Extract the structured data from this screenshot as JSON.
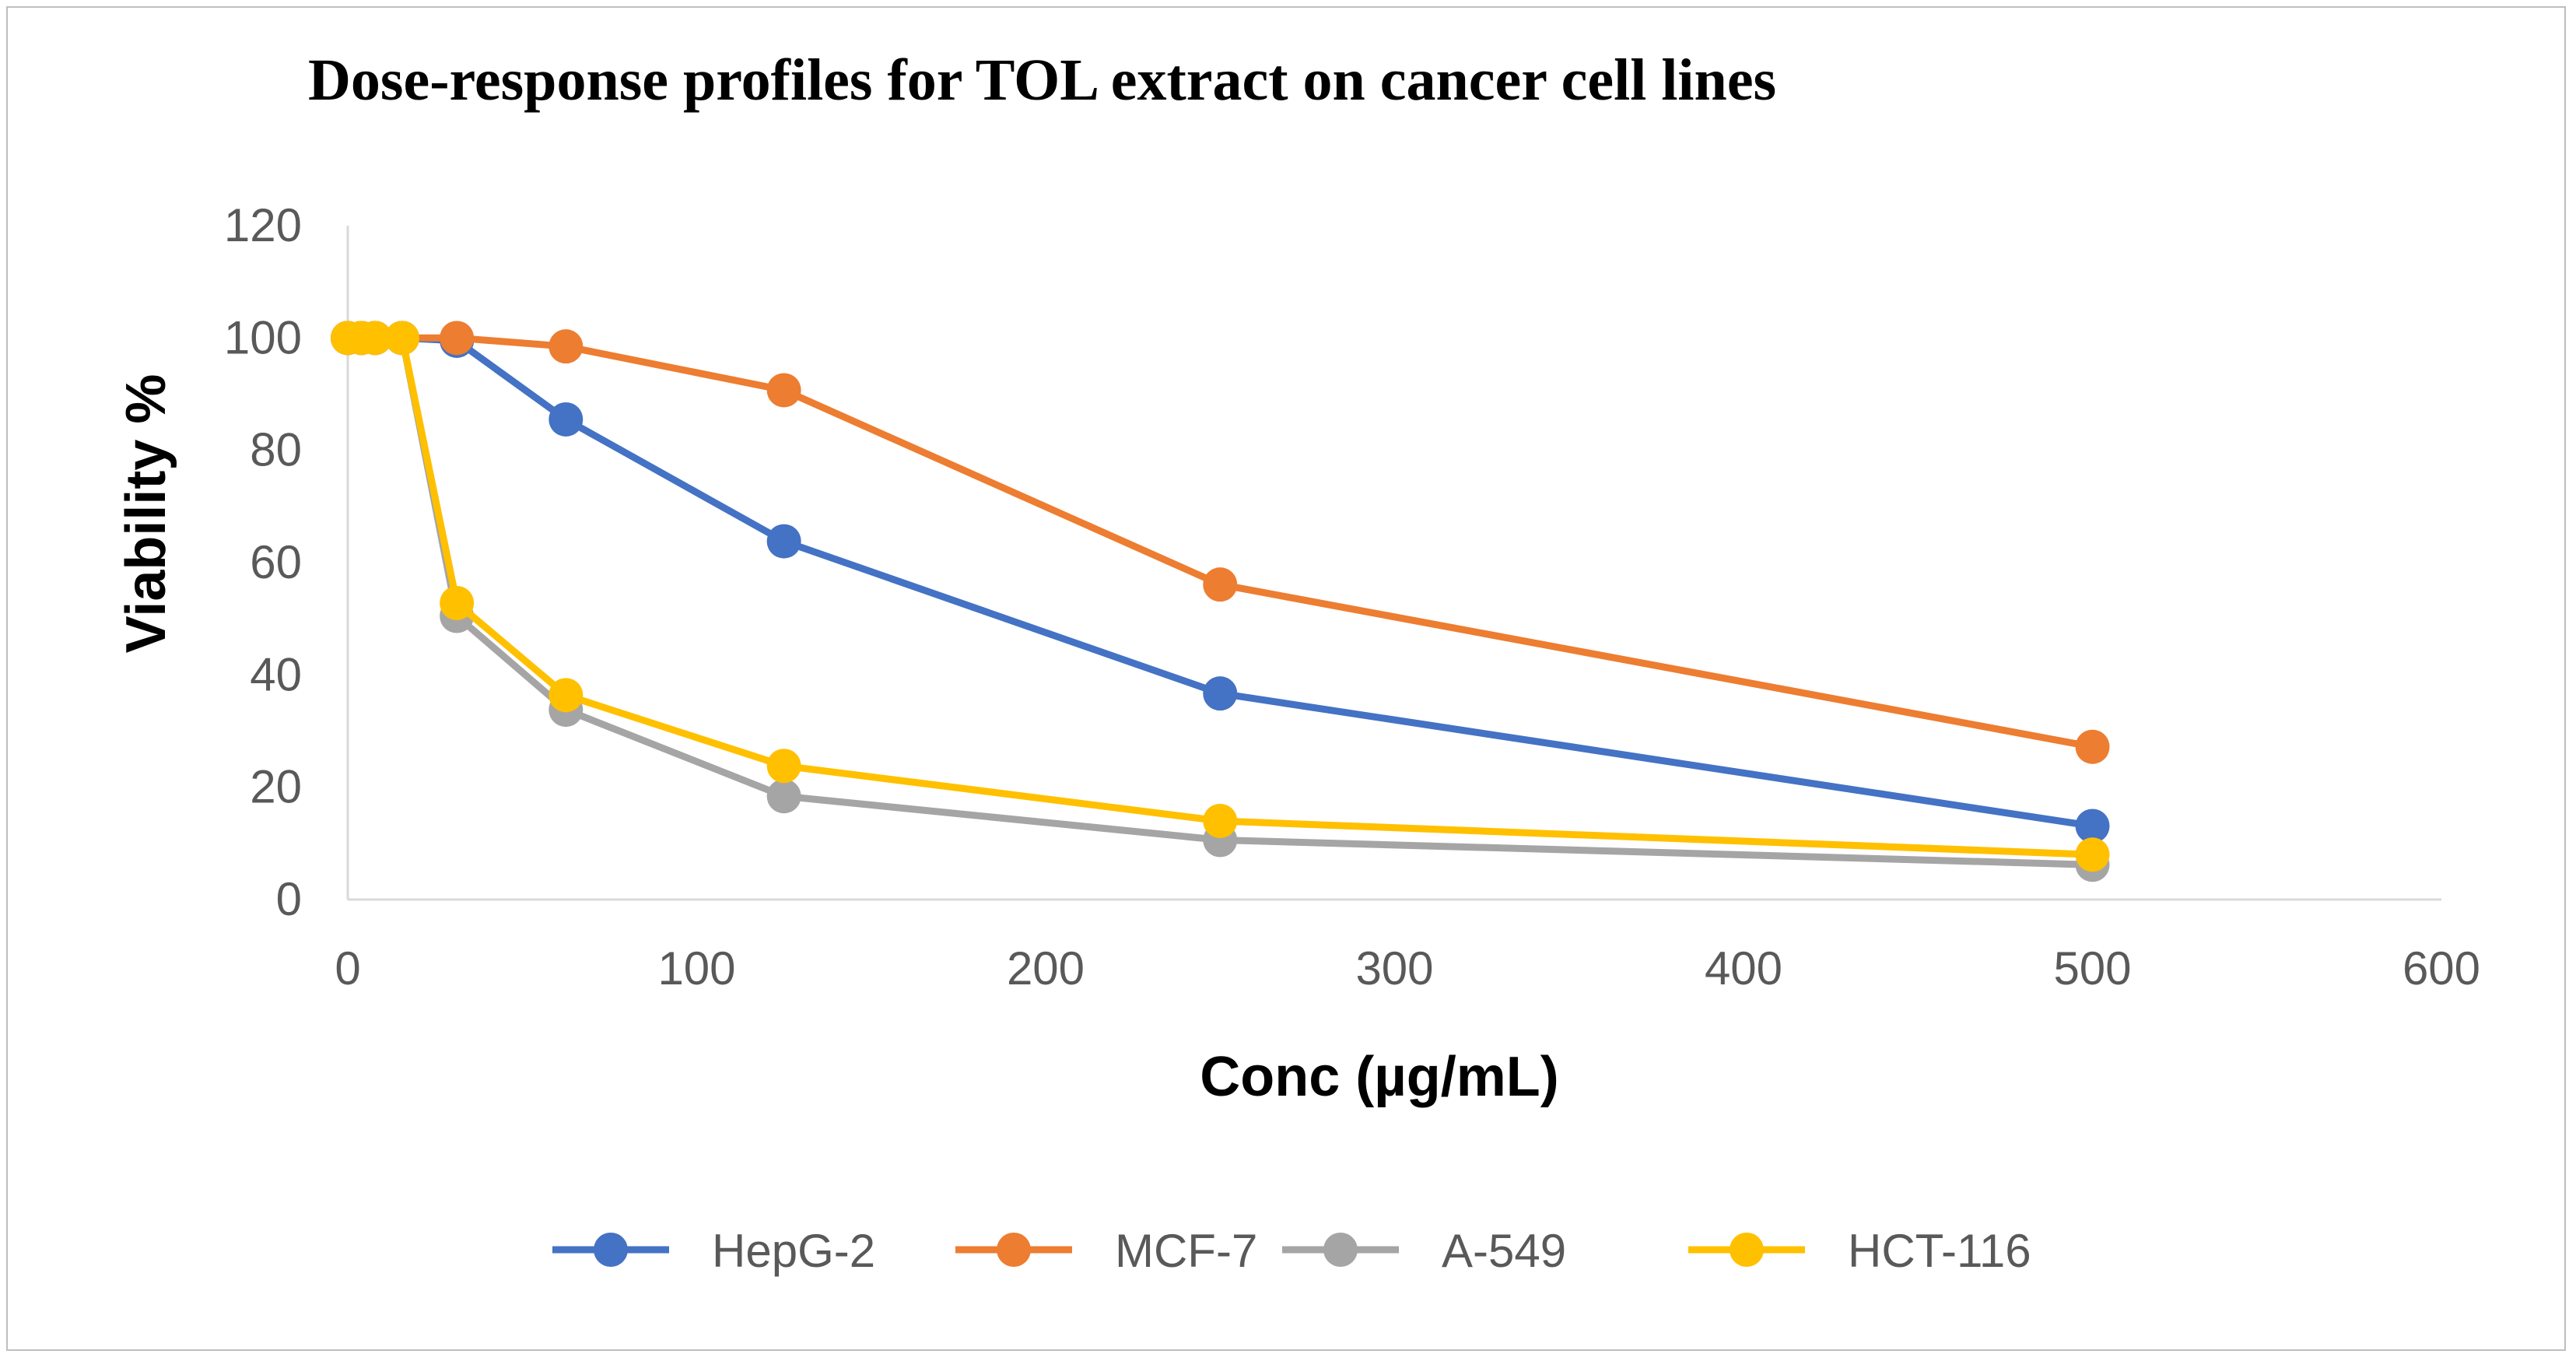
{
  "chart_data": {
    "type": "line",
    "title": "Dose-response profiles for TOL extract on cancer cell lines",
    "xlabel": "Conc (µg/mL)",
    "ylabel": "Viability %",
    "xlim": [
      0,
      600
    ],
    "ylim": [
      0,
      120
    ],
    "xticks": [
      0,
      100,
      200,
      300,
      400,
      500,
      600
    ],
    "yticks": [
      0,
      20,
      40,
      60,
      80,
      100,
      120
    ],
    "grid": false,
    "legend_position": "bottom",
    "series": [
      {
        "name": "HepG-2",
        "color": "#4472C4",
        "x": [
          0,
          3.9,
          7.8,
          15.6,
          31.25,
          62.5,
          125,
          250,
          500
        ],
        "y": [
          100,
          100,
          100,
          100,
          99.5,
          85.5,
          63.8,
          36.7,
          13.1
        ]
      },
      {
        "name": "MCF-7",
        "color": "#ED7D31",
        "x": [
          0,
          3.9,
          7.8,
          15.6,
          31.25,
          62.5,
          125,
          250,
          500
        ],
        "y": [
          100,
          100,
          100,
          100,
          100,
          98.5,
          90.7,
          56.1,
          27.2
        ]
      },
      {
        "name": "A-549",
        "color": "#A5A5A5",
        "x": [
          0,
          3.9,
          7.8,
          15.6,
          31.25,
          62.5,
          125,
          250,
          500
        ],
        "y": [
          100,
          100,
          100,
          100,
          50.5,
          33.8,
          18.4,
          10.6,
          6.2
        ]
      },
      {
        "name": "HCT-116",
        "color": "#FFC000",
        "x": [
          0,
          3.9,
          7.8,
          15.6,
          31.25,
          62.5,
          125,
          250,
          500
        ],
        "y": [
          100,
          100,
          100,
          100,
          52.8,
          36.4,
          23.8,
          14.0,
          8.0
        ]
      }
    ]
  }
}
